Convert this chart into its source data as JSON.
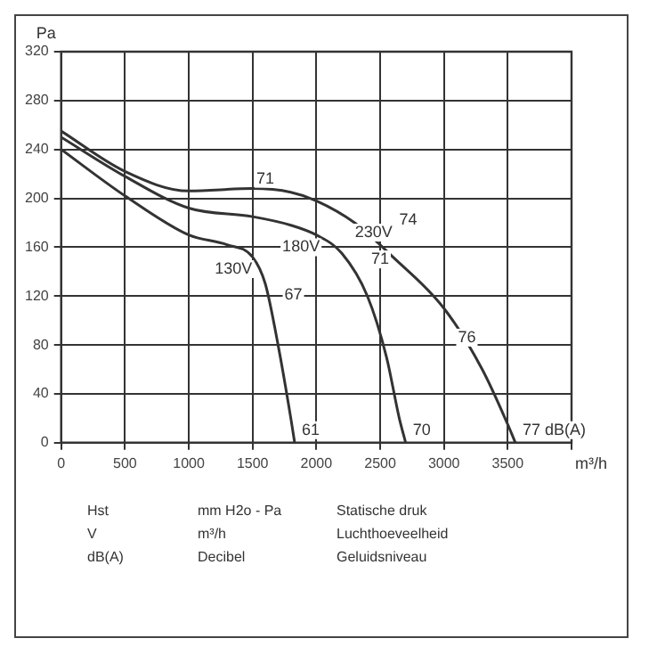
{
  "chart_data": {
    "type": "line",
    "ylabel": "Pa",
    "xlabel": "m³/h",
    "xlim": [
      0,
      4000
    ],
    "ylim": [
      0,
      320
    ],
    "xticks": [
      0,
      500,
      1000,
      1500,
      2000,
      2500,
      3000,
      3500,
      {
        "value": 4000,
        "label": null
      }
    ],
    "yticks": [
      0,
      40,
      80,
      120,
      160,
      200,
      240,
      280,
      320
    ],
    "grid": true,
    "marker": "none",
    "line_style": "solid",
    "series": [
      {
        "color": "#333333",
        "x": [
          0,
          500,
          1000,
          1300,
          1500,
          1600,
          1700,
          1800,
          1830
        ],
        "values": [
          240,
          202,
          170,
          162,
          152,
          130,
          80,
          20,
          0
        ]
      },
      {
        "color": "#333333",
        "x": [
          0,
          500,
          1000,
          1500,
          1800,
          2000,
          2200,
          2400,
          2550,
          2650,
          2700
        ],
        "values": [
          250,
          218,
          192,
          185,
          178,
          170,
          155,
          120,
          70,
          20,
          0
        ]
      },
      {
        "color": "#333333",
        "x": [
          0,
          500,
          1000,
          1500,
          1800,
          2000,
          2300,
          2600,
          3000,
          3300,
          3500,
          3560
        ],
        "values": [
          255,
          222,
          206,
          208,
          205,
          198,
          180,
          152,
          110,
          60,
          15,
          0
        ]
      }
    ],
    "annotations": [
      {
        "text": "130V",
        "x": 1350,
        "y": 142
      },
      {
        "text": "180V",
        "x": 1880,
        "y": 160
      },
      {
        "text": "230V",
        "x": 2450,
        "y": 172
      },
      {
        "text": "71",
        "x": 1600,
        "y": 216
      },
      {
        "text": "74",
        "x": 2720,
        "y": 182
      },
      {
        "text": "76",
        "x": 3180,
        "y": 86
      },
      {
        "text": "77 dB(A)",
        "x": 3560,
        "y": 0
      },
      {
        "text": "71",
        "x": 2500,
        "y": 150
      },
      {
        "text": "67",
        "x": 1820,
        "y": 121
      },
      {
        "text": "61",
        "x": 1830,
        "y": 0
      },
      {
        "text": "70",
        "x": 2700,
        "y": 0
      },
      "Hst",
      "mm H2o - Pa",
      "Statische druk",
      "V",
      "m³/h",
      "Luchthoeveelheid",
      "dB(A)",
      "Decibel",
      "Geluidsniveau"
    ]
  }
}
